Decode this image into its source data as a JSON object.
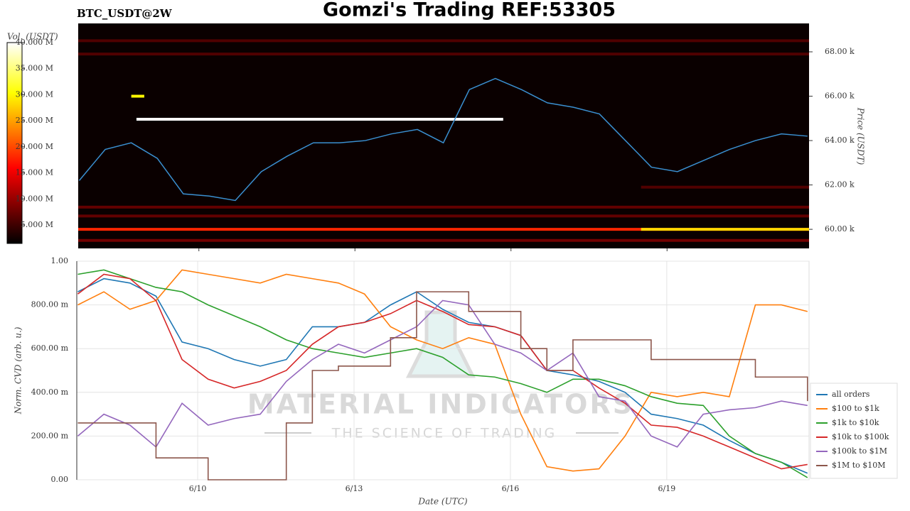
{
  "chart_data": [
    {
      "type": "heatmap-line",
      "title": "Gomzi's Trading REF:53305",
      "subtitle": "BTC_USDT@2W",
      "y_label": "Price (USDT)",
      "x": [
        7.7,
        8.2,
        8.7,
        9.2,
        9.7,
        10.2,
        10.7,
        11.2,
        11.7,
        12.2,
        12.7,
        13.2,
        13.7,
        14.2,
        14.7,
        15.2,
        15.7,
        16.2,
        16.7,
        17.2,
        17.7,
        18.2,
        18.7,
        19.2,
        19.7,
        20.2,
        20.7,
        21.2,
        21.7
      ],
      "xlim": [
        7.68,
        21.73
      ],
      "xticks": [
        {
          "value": 10,
          "label": "6/10"
        },
        {
          "value": 13,
          "label": "6/13"
        },
        {
          "value": 16,
          "label": "6/16"
        },
        {
          "value": 19,
          "label": "6/19"
        }
      ],
      "ylim": [
        59140,
        69280
      ],
      "yticks": [
        {
          "value": 60000,
          "label": "60.00 k"
        },
        {
          "value": 62000,
          "label": "62.00 k"
        },
        {
          "value": 64000,
          "label": "64.00 k"
        },
        {
          "value": 66000,
          "label": "66.00 k"
        },
        {
          "value": 68000,
          "label": "68.00 k"
        }
      ],
      "series": [
        {
          "color": "#3a8fd0",
          "values": [
            62200,
            63600,
            63900,
            63200,
            61600,
            61500,
            61300,
            62600,
            63300,
            63900,
            63900,
            64000,
            64300,
            64500,
            63900,
            66300,
            66800,
            66300,
            65700,
            65500,
            65200,
            64000,
            62800,
            62600,
            63100,
            63600,
            64000,
            64300,
            64200
          ]
        }
      ],
      "heatmap": {
        "name": "Vol. (USDT)",
        "clim": [
          1460000,
          40000000
        ],
        "cticks": [
          {
            "value": 5000000,
            "label": "5.000 M"
          },
          {
            "value": 10000000,
            "label": "10.000 M"
          },
          {
            "value": 15000000,
            "label": "15.000 M"
          },
          {
            "value": 20000000,
            "label": "20.000 M"
          },
          {
            "value": 25000000,
            "label": "25.000 M"
          },
          {
            "value": 30000000,
            "label": "30.000 M"
          },
          {
            "value": 35000000,
            "label": "35.000 M"
          },
          {
            "value": 40000000,
            "label": "40.000 M"
          }
        ],
        "levels": [
          {
            "price": 60000,
            "volume": 18000000,
            "start": 7.68,
            "end": 21.73
          },
          {
            "price": 60000,
            "volume": 28000000,
            "start": 18.5,
            "end": 21.73
          },
          {
            "price": 59500,
            "volume": 8000000,
            "start": 7.68,
            "end": 21.73
          },
          {
            "price": 60600,
            "volume": 7000000,
            "start": 7.68,
            "end": 21.73
          },
          {
            "price": 61000,
            "volume": 7000000,
            "start": 7.68,
            "end": 21.73
          },
          {
            "price": 61900,
            "volume": 6000000,
            "start": 18.5,
            "end": 21.73
          },
          {
            "price": 64960,
            "volume": 40000000,
            "start": 8.8,
            "end": 15.85
          },
          {
            "price": 66000,
            "volume": 30000000,
            "start": 8.7,
            "end": 8.95
          },
          {
            "price": 67900,
            "volume": 6000000,
            "start": 7.68,
            "end": 21.73
          },
          {
            "price": 68500,
            "volume": 6000000,
            "start": 7.68,
            "end": 21.73
          }
        ]
      }
    },
    {
      "type": "line",
      "y_label": "Norm. CVD (arb. u.)",
      "x_label": "Date (UTC)",
      "watermark": "MATERIAL INDICATORS",
      "watermark_subtitle": "THE SCIENCE OF TRADING",
      "x": [
        7.7,
        8.2,
        8.7,
        9.2,
        9.7,
        10.2,
        10.7,
        11.2,
        11.7,
        12.2,
        12.7,
        13.2,
        13.7,
        14.2,
        14.7,
        15.2,
        15.7,
        16.2,
        16.7,
        17.2,
        17.7,
        18.2,
        18.7,
        19.2,
        19.7,
        20.2,
        20.7,
        21.2,
        21.7
      ],
      "xlim": [
        7.68,
        21.73
      ],
      "xticks": [
        {
          "value": 10,
          "label": "6/10"
        },
        {
          "value": 13,
          "label": "6/13"
        },
        {
          "value": 16,
          "label": "6/16"
        },
        {
          "value": 19,
          "label": "6/19"
        }
      ],
      "ylim": [
        0,
        1
      ],
      "yticks": [
        {
          "value": 0,
          "label": "0.00"
        },
        {
          "value": 0.2,
          "label": "200.00 m"
        },
        {
          "value": 0.4,
          "label": "400.00 m"
        },
        {
          "value": 0.6,
          "label": "600.00 m"
        },
        {
          "value": 0.8,
          "label": "800.00 m"
        },
        {
          "value": 1,
          "label": "1.00"
        }
      ],
      "grid": true,
      "legend": "lower right",
      "series": [
        {
          "name": "all orders",
          "color": "#1f77b4",
          "values": [
            0.86,
            0.92,
            0.9,
            0.84,
            0.63,
            0.6,
            0.55,
            0.52,
            0.55,
            0.7,
            0.7,
            0.72,
            0.8,
            0.86,
            0.78,
            0.72,
            0.7,
            0.66,
            0.5,
            0.48,
            0.45,
            0.4,
            0.3,
            0.28,
            0.25,
            0.18,
            0.12,
            0.08,
            0.03
          ]
        },
        {
          "name": "$100 to $1k",
          "color": "#ff7f0e",
          "values": [
            0.8,
            0.86,
            0.78,
            0.82,
            0.96,
            0.94,
            0.92,
            0.9,
            0.94,
            0.92,
            0.9,
            0.85,
            0.7,
            0.64,
            0.6,
            0.65,
            0.62,
            0.3,
            0.06,
            0.04,
            0.05,
            0.2,
            0.4,
            0.38,
            0.4,
            0.38,
            0.8,
            0.8,
            0.77
          ]
        },
        {
          "name": "$1k to $10k",
          "color": "#2ca02c",
          "values": [
            0.94,
            0.96,
            0.92,
            0.88,
            0.86,
            0.8,
            0.75,
            0.7,
            0.64,
            0.6,
            0.58,
            0.56,
            0.58,
            0.6,
            0.56,
            0.48,
            0.47,
            0.44,
            0.4,
            0.46,
            0.46,
            0.43,
            0.38,
            0.35,
            0.34,
            0.2,
            0.12,
            0.08,
            0.01
          ]
        },
        {
          "name": "$10k to $100k",
          "color": "#d62728",
          "values": [
            0.85,
            0.94,
            0.92,
            0.82,
            0.55,
            0.46,
            0.42,
            0.45,
            0.5,
            0.62,
            0.7,
            0.72,
            0.76,
            0.82,
            0.77,
            0.71,
            0.7,
            0.66,
            0.5,
            0.5,
            0.42,
            0.35,
            0.25,
            0.24,
            0.2,
            0.15,
            0.1,
            0.05,
            0.07
          ]
        },
        {
          "name": "$100k to $1M",
          "color": "#9467bd",
          "values": [
            0.2,
            0.3,
            0.25,
            0.15,
            0.35,
            0.25,
            0.28,
            0.3,
            0.45,
            0.55,
            0.62,
            0.58,
            0.64,
            0.7,
            0.82,
            0.8,
            0.62,
            0.58,
            0.5,
            0.58,
            0.38,
            0.36,
            0.2,
            0.15,
            0.3,
            0.32,
            0.33,
            0.36,
            0.34
          ]
        },
        {
          "name": "$1M to $10M",
          "color": "#8c564b",
          "step": true,
          "values": [
            0.26,
            0.26,
            0.26,
            0.1,
            0.1,
            0.0,
            0.0,
            0.0,
            0.26,
            0.5,
            0.52,
            0.52,
            0.65,
            0.86,
            0.86,
            0.77,
            0.77,
            0.6,
            0.5,
            0.64,
            0.64,
            0.64,
            0.55,
            0.55,
            0.55,
            0.55,
            0.47,
            0.47,
            0.36
          ]
        }
      ]
    }
  ]
}
